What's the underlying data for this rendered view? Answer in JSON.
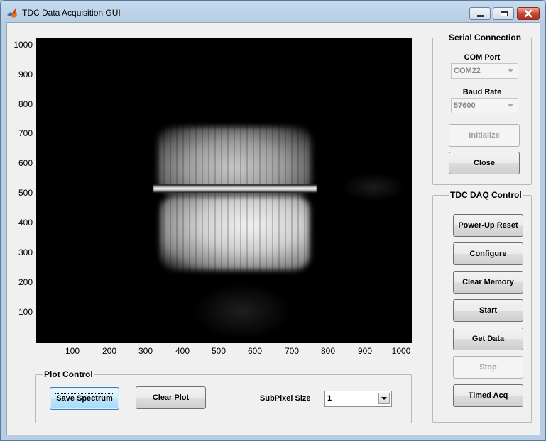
{
  "window": {
    "title": "TDC Data Acquisition GUI",
    "icon": "matlab-icon"
  },
  "plot": {
    "y_ticks": [
      "1000",
      "900",
      "800",
      "700",
      "600",
      "500",
      "400",
      "300",
      "200",
      "100"
    ],
    "x_ticks": [
      "100",
      "200",
      "300",
      "400",
      "500",
      "600",
      "700",
      "800",
      "900",
      "1000"
    ]
  },
  "serial": {
    "title": "Serial Connection",
    "com_label": "COM Port",
    "com_value": "COM22",
    "baud_label": "Baud Rate",
    "baud_value": "57600",
    "initialize_label": "Initialize",
    "close_label": "Close"
  },
  "tdc": {
    "title": "TDC DAQ Control",
    "buttons": [
      "Power-Up Reset",
      "Configure",
      "Clear Memory",
      "Start",
      "Get Data",
      "Stop",
      "Timed Acq"
    ]
  },
  "plot_control": {
    "title": "Plot Control",
    "save_label": "Save Spectrum",
    "clear_label": "Clear Plot",
    "subpixel_label": "SubPixel Size",
    "subpixel_value": "1"
  }
}
